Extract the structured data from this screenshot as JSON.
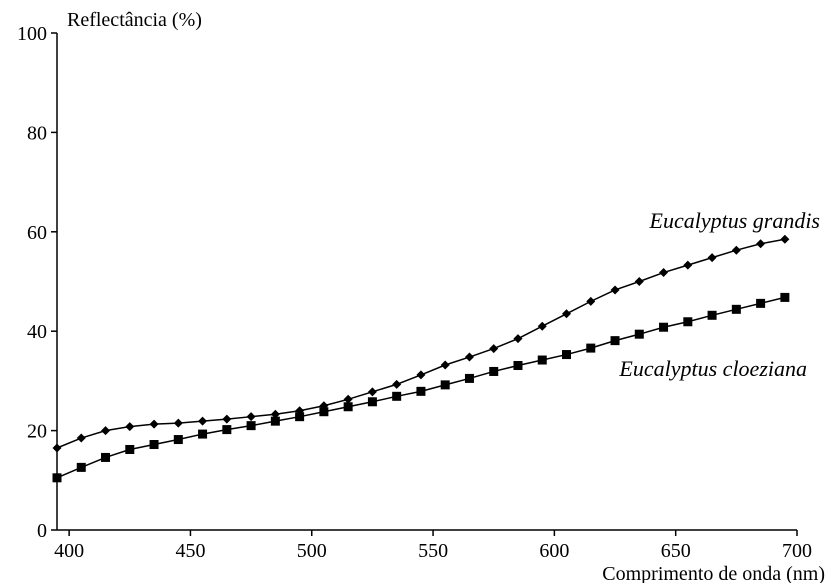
{
  "chart_data": {
    "type": "line",
    "title": "",
    "ylabel": "Reflectância (%)",
    "xlabel": "Comprimento de onda (nm)",
    "xlim": [
      395,
      700
    ],
    "ylim": [
      0,
      100
    ],
    "yticks": [
      0,
      20,
      40,
      60,
      80,
      100
    ],
    "xticks": [
      400,
      450,
      500,
      550,
      600,
      650,
      700
    ],
    "grid": false,
    "x": [
      395,
      405,
      415,
      425,
      435,
      445,
      455,
      465,
      475,
      485,
      495,
      505,
      515,
      525,
      535,
      545,
      555,
      565,
      575,
      585,
      595,
      605,
      615,
      625,
      635,
      645,
      655,
      665,
      675,
      685,
      695
    ],
    "series": [
      {
        "name": "Eucalyptus grandis",
        "marker": "diamond",
        "color": "#000000",
        "values": [
          16.5,
          18.5,
          20.0,
          20.8,
          21.3,
          21.5,
          21.9,
          22.3,
          22.8,
          23.3,
          24.0,
          25.0,
          26.3,
          27.8,
          29.3,
          31.2,
          33.2,
          34.8,
          36.5,
          38.5,
          41.0,
          43.5,
          46.0,
          48.3,
          50.0,
          51.8,
          53.3,
          54.8,
          56.3,
          57.6,
          58.5
        ]
      },
      {
        "name": "Eucalyptus cloeziana",
        "marker": "square",
        "color": "#000000",
        "values": [
          10.5,
          12.6,
          14.6,
          16.2,
          17.2,
          18.2,
          19.3,
          20.2,
          21.0,
          21.9,
          22.8,
          23.8,
          24.8,
          25.8,
          26.9,
          27.9,
          29.2,
          30.5,
          31.9,
          33.1,
          34.2,
          35.3,
          36.6,
          38.1,
          39.4,
          40.8,
          41.9,
          43.2,
          44.4,
          45.6,
          46.8
        ]
      }
    ]
  }
}
